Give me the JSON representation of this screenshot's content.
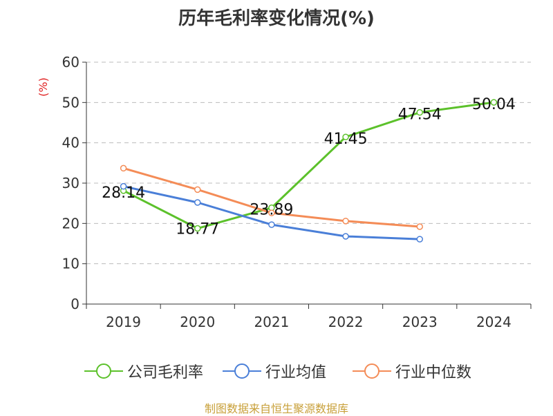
{
  "chart_data": {
    "type": "line",
    "title": "历年毛利率变化情况(%)",
    "ylabel": "(%)",
    "xlabel": "",
    "categories": [
      "2019",
      "2020",
      "2021",
      "2022",
      "2023",
      "2024"
    ],
    "yticks": [
      "0",
      "10",
      "20",
      "30",
      "40",
      "50",
      "60"
    ],
    "ylim": [
      0,
      60
    ],
    "grid": true,
    "legend_position": "bottom",
    "series": [
      {
        "name": "公司毛利率",
        "color": "#5cc12b",
        "values": [
          28.14,
          18.77,
          23.89,
          41.45,
          47.54,
          50.04
        ],
        "labels": [
          "28.14",
          "18.77",
          "23.89",
          "41.45",
          "47.54",
          "50.04"
        ]
      },
      {
        "name": "行业均值",
        "color": "#4a7fd8",
        "values": [
          29.2,
          25.2,
          19.7,
          16.8,
          16.1,
          null
        ]
      },
      {
        "name": "行业中位数",
        "color": "#f48c57",
        "values": [
          33.7,
          28.4,
          22.6,
          20.6,
          19.2,
          null
        ]
      }
    ]
  },
  "source": "制图数据来自恒生聚源数据库",
  "colors": {
    "ylabel": "#e02020",
    "axis": "#333333",
    "grid": "#bbbbbb"
  }
}
